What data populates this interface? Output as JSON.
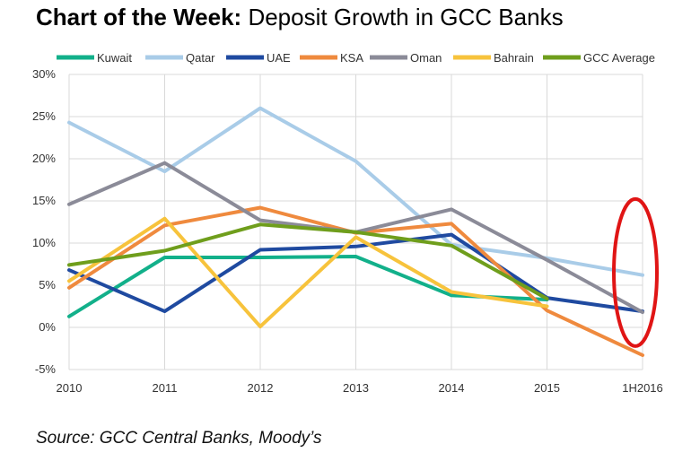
{
  "header": {
    "title_bold": "Chart of the Week:",
    "title_rest": " Deposit Growth in GCC Banks"
  },
  "source": "Source: GCC Central Banks, Moody’s",
  "chart_data": {
    "type": "line",
    "categories": [
      "2010",
      "2011",
      "2012",
      "2013",
      "2014",
      "2015",
      "1H2016"
    ],
    "ylim": [
      -5,
      30
    ],
    "yticks": [
      -5,
      0,
      5,
      10,
      15,
      20,
      25,
      30
    ],
    "ytick_labels": [
      "-5%",
      "0%",
      "5%",
      "10%",
      "15%",
      "20%",
      "25%",
      "30%"
    ],
    "grid": true,
    "legend_position": "top",
    "series": [
      {
        "name": "Kuwait",
        "color": "#12b08a",
        "values": [
          1.3,
          8.3,
          8.3,
          8.4,
          3.8,
          3.3,
          null
        ]
      },
      {
        "name": "Qatar",
        "color": "#a9cce8",
        "values": [
          24.3,
          18.5,
          26.0,
          19.7,
          9.8,
          8.2,
          6.2
        ]
      },
      {
        "name": "UAE",
        "color": "#1f4aa0",
        "values": [
          6.8,
          1.9,
          9.2,
          9.6,
          11.0,
          3.5,
          1.9
        ]
      },
      {
        "name": "KSA",
        "color": "#ef8a3e",
        "values": [
          4.7,
          12.1,
          14.2,
          11.2,
          12.3,
          2.0,
          -3.3
        ]
      },
      {
        "name": "Oman",
        "color": "#8b8b98",
        "values": [
          14.6,
          19.5,
          12.7,
          11.3,
          14.0,
          8.0,
          1.8
        ]
      },
      {
        "name": "Bahrain",
        "color": "#f7c33c",
        "values": [
          5.5,
          12.9,
          0.1,
          10.7,
          4.2,
          2.5,
          null
        ]
      },
      {
        "name": "GCC Average",
        "color": "#6f9e1c",
        "values": [
          7.4,
          9.1,
          12.2,
          11.3,
          9.7,
          3.4,
          null
        ]
      }
    ],
    "annotation": {
      "shape": "ellipse",
      "color": "#e01515",
      "target_category": "1H2016"
    }
  }
}
